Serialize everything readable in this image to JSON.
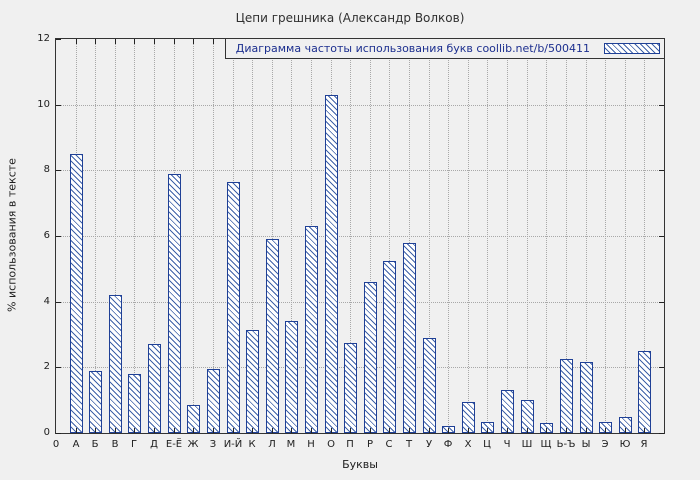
{
  "chart_data": {
    "type": "bar",
    "title": "Цепи грешника (Александр Волков)",
    "legend": "Диаграмма частоты использования букв  coollib.net/b/500411",
    "xlabel": "Буквы",
    "ylabel": "% использования в тексте",
    "x_origin_label": "0",
    "categories": [
      "А",
      "Б",
      "В",
      "Г",
      "Д",
      "Е-Ё",
      "Ж",
      "З",
      "И-Й",
      "К",
      "Л",
      "М",
      "Н",
      "О",
      "П",
      "Р",
      "С",
      "Т",
      "У",
      "Ф",
      "Х",
      "Ц",
      "Ч",
      "Ш",
      "Щ",
      "Ь-Ъ",
      "Ы",
      "Э",
      "Ю",
      "Я"
    ],
    "values": [
      8.5,
      1.9,
      4.2,
      1.8,
      2.7,
      7.9,
      0.85,
      1.95,
      7.65,
      3.15,
      5.9,
      3.4,
      6.3,
      10.3,
      2.75,
      4.6,
      5.25,
      5.8,
      2.9,
      0.2,
      0.95,
      0.35,
      1.3,
      1.0,
      0.3,
      2.25,
      2.15,
      0.35,
      0.5,
      2.5
    ],
    "ylim": [
      0,
      12
    ],
    "yticks": [
      0,
      2,
      4,
      6,
      8,
      10,
      12
    ],
    "grid": true,
    "legend_position": "top-right",
    "colors": {
      "background": "#f0f0f0",
      "bar_fill": "#ffffff",
      "bar_hatch": "#3f62a8",
      "bar_border": "#1f4096",
      "legend_text": "#1c2f8f",
      "grid": "#a8a8a8"
    }
  }
}
